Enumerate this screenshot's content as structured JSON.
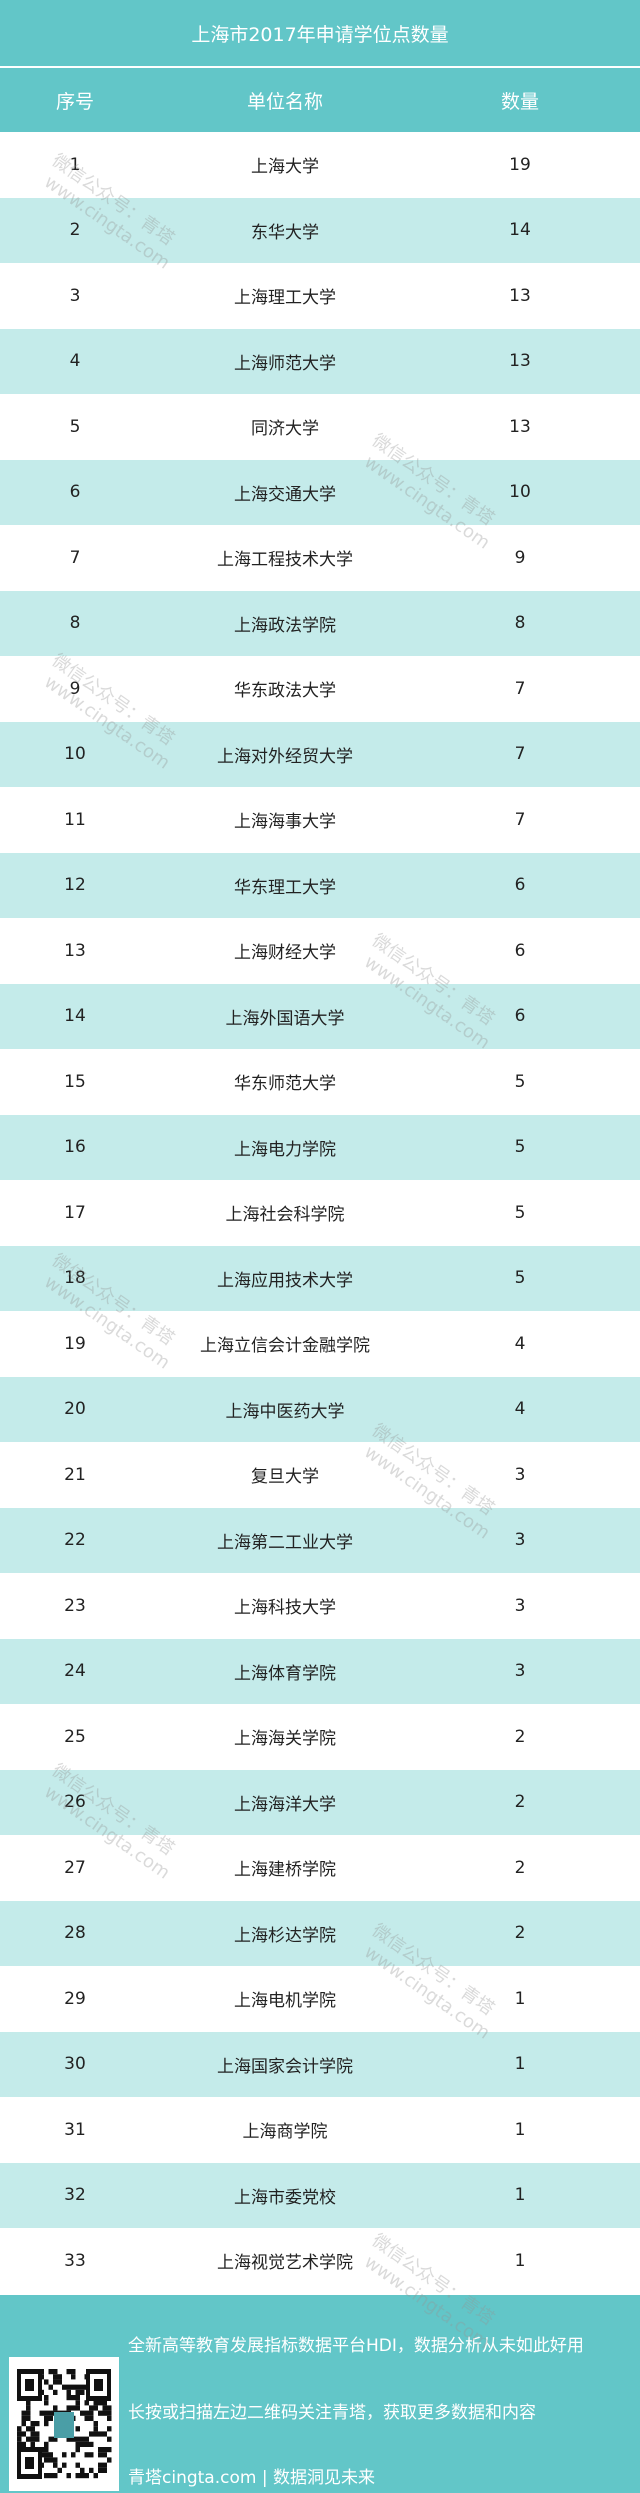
{
  "title": "上海市2017年申请学位点数量",
  "columns": [
    "序号",
    "单位名称",
    "数量"
  ],
  "rows": [
    [
      "1",
      "上海大学",
      "19"
    ],
    [
      "2",
      "东华大学",
      "14"
    ],
    [
      "3",
      "上海理工大学",
      "13"
    ],
    [
      "4",
      "上海师范大学",
      "13"
    ],
    [
      "5",
      "同济大学",
      "13"
    ],
    [
      "6",
      "上海交通大学",
      "10"
    ],
    [
      "7",
      "上海工程技术大学",
      "9"
    ],
    [
      "8",
      "上海政法学院",
      "8"
    ],
    [
      "9",
      "华东政法大学",
      "7"
    ],
    [
      "10",
      "上海对外经贸大学",
      "7"
    ],
    [
      "11",
      "上海海事大学",
      "7"
    ],
    [
      "12",
      "华东理工大学",
      "6"
    ],
    [
      "13",
      "上海财经大学",
      "6"
    ],
    [
      "14",
      "上海外国语大学",
      "6"
    ],
    [
      "15",
      "华东师范大学",
      "5"
    ],
    [
      "16",
      "上海电力学院",
      "5"
    ],
    [
      "17",
      "上海社会科学院",
      "5"
    ],
    [
      "18",
      "上海应用技术大学",
      "5"
    ],
    [
      "19",
      "上海立信会计金融学院",
      "4"
    ],
    [
      "20",
      "上海中医药大学",
      "4"
    ],
    [
      "21",
      "复旦大学",
      "3"
    ],
    [
      "22",
      "上海第二工业大学",
      "3"
    ],
    [
      "23",
      "上海科技大学",
      "3"
    ],
    [
      "24",
      "上海体育学院",
      "3"
    ],
    [
      "25",
      "上海海关学院",
      "2"
    ],
    [
      "26",
      "上海海洋大学",
      "2"
    ],
    [
      "27",
      "上海建桥学院",
      "2"
    ],
    [
      "28",
      "上海杉达学院",
      "2"
    ],
    [
      "29",
      "上海电机学院",
      "1"
    ],
    [
      "30",
      "上海国家会计学院",
      "1"
    ],
    [
      "31",
      "上海商学院",
      "1"
    ],
    [
      "32",
      "上海市委党校",
      "1"
    ],
    [
      "33",
      "上海视觉艺术学院",
      "1"
    ]
  ],
  "footer": {
    "line1": "全新高等教育发展指标数据平台HDI，数据分析从未如此好用",
    "line2": "长按或扫描左边二维码关注青塔，获取更多数据和内容",
    "line3": "青塔cingta.com | 数据洞见未来",
    "qr_icon": "qr-code-icon"
  },
  "watermark": {
    "line1": "微信公众号：青塔",
    "line2": "www.cingta.com"
  },
  "colors": {
    "header": "#62c6c8",
    "row_alt": "#c4ebea"
  }
}
